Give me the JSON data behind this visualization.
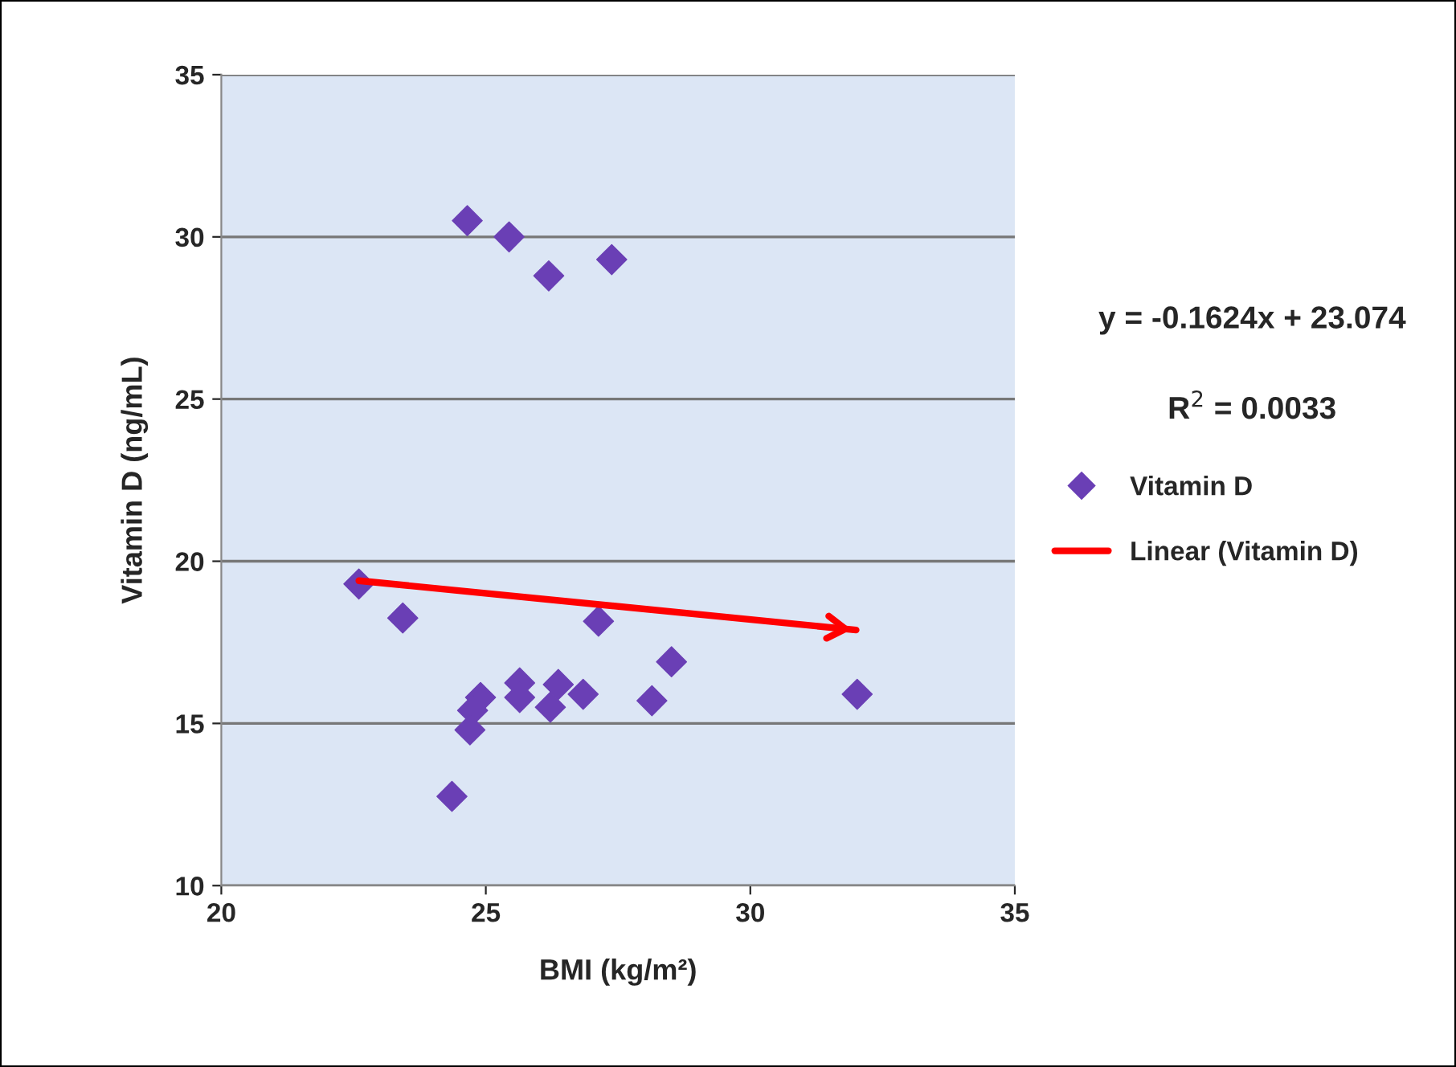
{
  "chart_data": {
    "type": "scatter",
    "xlabel": "BMI (kg/m²)",
    "ylabel": "Vitamin D (ng/mL)",
    "xlim": [
      20,
      35
    ],
    "xticks": [
      20,
      25,
      30,
      35
    ],
    "ylim": [
      10,
      35
    ],
    "yticks": [
      10,
      15,
      20,
      25,
      30,
      35
    ],
    "grid": "y",
    "legend": "right",
    "marker": "diamond",
    "annotations": [
      "y = -0.1624x + 23.074",
      "R$^{2}$ = 0.0033"
    ],
    "series": [
      {
        "name": "Vitamin D",
        "color": "#6a3fb5",
        "x": [
          24.65,
          25.44,
          26.19,
          27.38,
          22.6,
          23.43,
          27.13,
          28.51,
          32.02,
          28.14,
          26.84,
          26.37,
          26.22,
          25.64,
          25.64,
          24.9,
          24.75,
          24.7,
          24.36
        ],
        "values": [
          30.5,
          30.0,
          28.8,
          29.3,
          19.3,
          18.25,
          18.15,
          16.9,
          15.9,
          15.7,
          15.9,
          16.2,
          15.5,
          16.25,
          15.8,
          15.8,
          15.4,
          14.8,
          12.75
        ]
      },
      {
        "name": "Linear (Vitamin D)",
        "type": "line",
        "color": "#ff0000",
        "marker": "none",
        "x": [
          22.6,
          32.0
        ],
        "values": [
          19.4,
          17.88
        ]
      }
    ]
  }
}
